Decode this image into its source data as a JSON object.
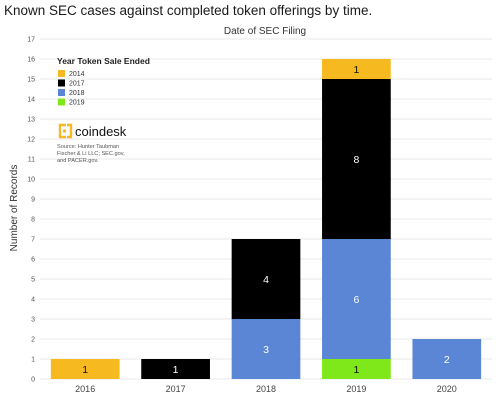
{
  "chart_data": {
    "type": "bar",
    "stacked": true,
    "title": "Known SEC cases against completed token offerings by time.",
    "subtitle": "Date of SEC Filing",
    "ylabel": "Number of Records",
    "xlabel": "",
    "categories": [
      "2016",
      "2017",
      "2018",
      "2019",
      "2020"
    ],
    "ylim": [
      0,
      17
    ],
    "yticks": [
      0,
      1,
      2,
      3,
      4,
      5,
      6,
      7,
      8,
      9,
      10,
      11,
      12,
      13,
      14,
      15,
      16,
      17
    ],
    "grid": true,
    "legend": {
      "title": "Year Token Sale Ended",
      "placement": "top-left"
    },
    "series": [
      {
        "name": "2014",
        "color": "#f6b91f",
        "values": [
          1,
          0,
          0,
          1,
          0
        ]
      },
      {
        "name": "2017",
        "color": "#000000",
        "values": [
          0,
          1,
          4,
          8,
          0
        ]
      },
      {
        "name": "2018",
        "color": "#5b86d6",
        "values": [
          0,
          0,
          3,
          6,
          2
        ]
      },
      {
        "name": "2019",
        "color": "#7fe81a",
        "values": [
          0,
          0,
          0,
          1,
          0
        ]
      }
    ],
    "stack_order_bottom_to_top": [
      "2019",
      "2018",
      "2017",
      "2014"
    ],
    "totals": [
      1,
      1,
      7,
      16,
      2
    ]
  },
  "branding": {
    "logo_text": "coindesk",
    "logo_icon": "coindesk-bracket-icon",
    "logo_color": "#f6b91f",
    "source_lines": [
      "Source: Hunter Taubman",
      "Fischer & Li LLC; SEC.gov,",
      "and PACER.gov."
    ]
  }
}
